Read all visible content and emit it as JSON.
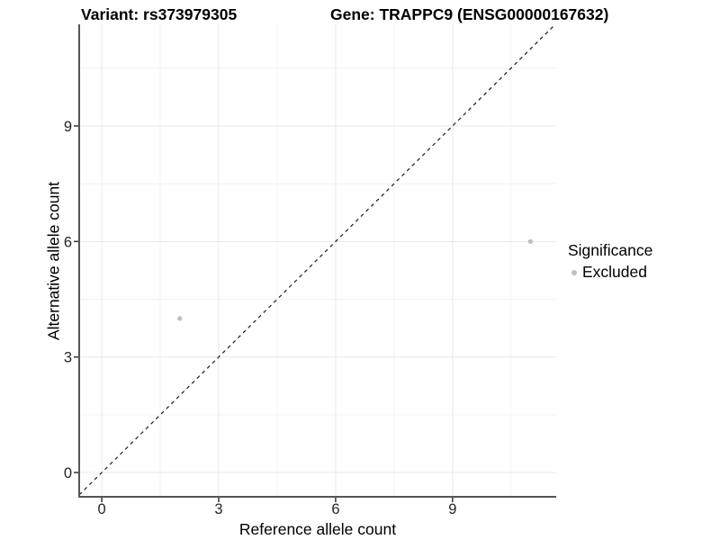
{
  "chart_data": {
    "type": "scatter",
    "title_left": "Variant: rs373979305",
    "title_right": "Gene: TRAPPC9 (ENSG00000167632)",
    "xlabel": "Reference allele count",
    "ylabel": "Alternative allele count",
    "xlim": [
      -0.58,
      11.66
    ],
    "ylim": [
      -0.63,
      11.64
    ],
    "xticks": [
      0,
      3,
      6,
      9
    ],
    "yticks": [
      0,
      3,
      6,
      9
    ],
    "xticks_minor": [
      1.5,
      4.5,
      7.5,
      10.5
    ],
    "yticks_minor": [
      1.5,
      4.5,
      7.5,
      10.5
    ],
    "grid": true,
    "identity_line": {
      "equation": "y = x",
      "style": "dashed",
      "color": "#1a1a1a"
    },
    "series": [
      {
        "name": "Excluded",
        "color": "#bebebe",
        "marker": "circle",
        "points": [
          {
            "x": 2,
            "y": 4
          },
          {
            "x": 11,
            "y": 6
          }
        ]
      }
    ],
    "legend": {
      "title": "Significance",
      "position": "right",
      "items": [
        {
          "label": "Excluded",
          "color": "#bebebe",
          "marker": "circle"
        }
      ]
    },
    "colors": {
      "background": "#ffffff",
      "grid_major": "#e8e8e8",
      "grid_minor": "#f3f3f3",
      "axis_line": "#565656",
      "tick_mark": "#333333",
      "tick_label": "#262626",
      "title": "#000000"
    }
  }
}
